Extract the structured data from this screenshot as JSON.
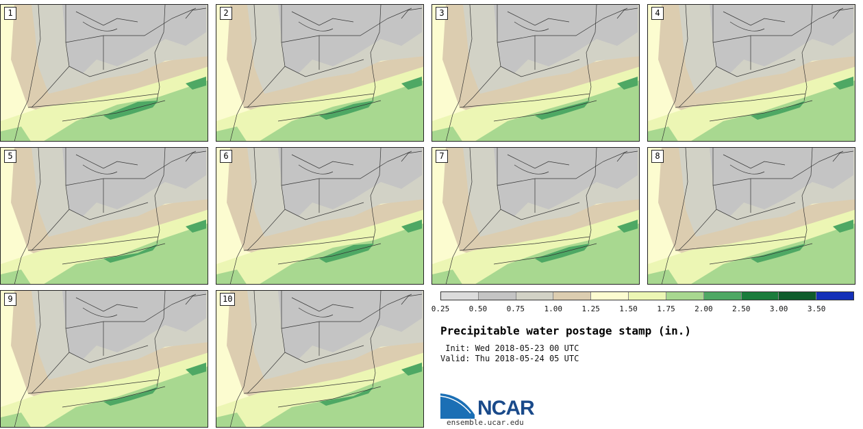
{
  "panels": [
    {
      "label": "1"
    },
    {
      "label": "2"
    },
    {
      "label": "3"
    },
    {
      "label": "4"
    },
    {
      "label": "5"
    },
    {
      "label": "6"
    },
    {
      "label": "7"
    },
    {
      "label": "8"
    },
    {
      "label": "9"
    },
    {
      "label": "10"
    }
  ],
  "colorbar": {
    "colors": [
      "#dcdcdc",
      "#c4c4c4",
      "#d2d2c6",
      "#dccdb0",
      "#fcfcd0",
      "#ecf6b4",
      "#a8d890",
      "#4ea864",
      "#1a7c3c",
      "#0e5c2c",
      "#1430b8"
    ],
    "tick_labels": [
      "0.25",
      "0.50",
      "0.75",
      "1.00",
      "1.25",
      "1.50",
      "1.75",
      "2.00",
      "2.50",
      "3.00",
      "3.50"
    ]
  },
  "title": "Precipitable water postage stamp (in.)",
  "init_line": " Init: Wed 2018-05-23 00 UTC",
  "valid_line": "Valid: Thu 2018-05-24 05 UTC",
  "logo": {
    "text": "NCAR",
    "url_text": "ensemble.ucar.edu"
  }
}
